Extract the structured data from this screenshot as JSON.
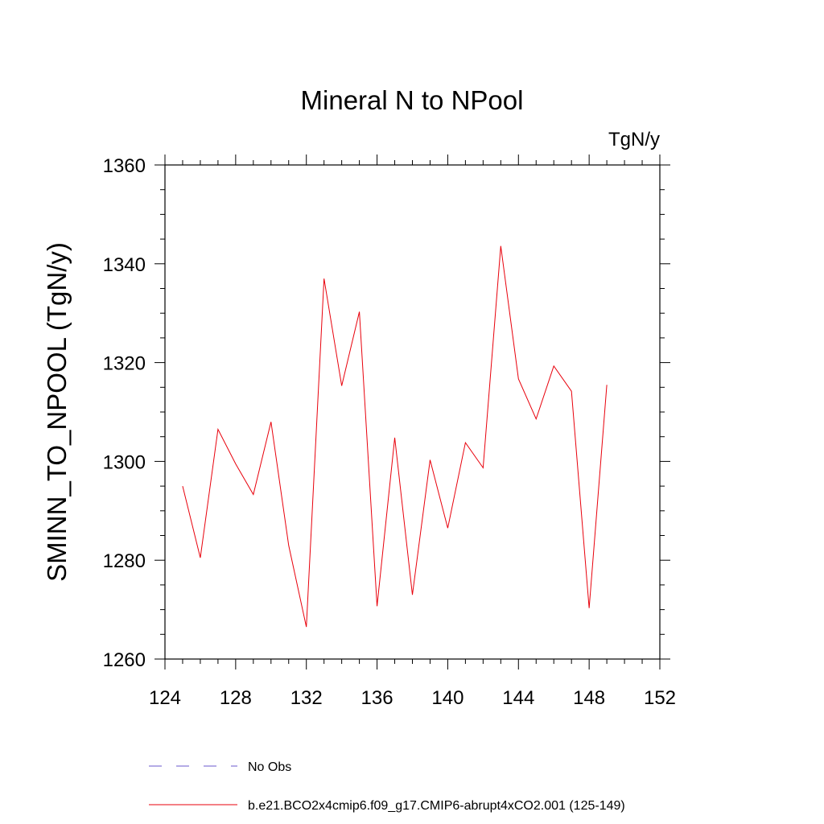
{
  "chart_data": {
    "type": "line",
    "title": "Mineral N to NPool",
    "units": "TgN/y",
    "ylabel": "SMINN_TO_NPOOL  (TgN/y)",
    "xlabel": "",
    "xlim": [
      124,
      152
    ],
    "ylim": [
      1260,
      1360
    ],
    "xticks": [
      124,
      128,
      132,
      136,
      140,
      144,
      148,
      152
    ],
    "yticks": [
      1260,
      1280,
      1300,
      1320,
      1340,
      1360
    ],
    "series": [
      {
        "name": "b.e21.BCO2x4cmip6.f09_g17.CMIP6-abrupt4xCO2.001 (125-149)",
        "color": "#e8000b",
        "style": "solid",
        "x": [
          125,
          126,
          127,
          128,
          129,
          130,
          131,
          132,
          133,
          134,
          135,
          136,
          137,
          138,
          139,
          140,
          141,
          142,
          143,
          144,
          145,
          146,
          147,
          148,
          149
        ],
        "values": [
          1295,
          1280.5,
          1306.5,
          1299.5,
          1293.3,
          1308,
          1283,
          1266.5,
          1337,
          1315.3,
          1330.3,
          1270.7,
          1304.8,
          1273,
          1300.3,
          1286.5,
          1303.8,
          1298.7,
          1343.6,
          1316.7,
          1308.6,
          1319.3,
          1314.2,
          1270.3,
          1315.5
        ]
      }
    ],
    "legend": [
      {
        "label": "No Obs",
        "style": "dashed",
        "color": "#6a5acd"
      },
      {
        "label": "b.e21.BCO2x4cmip6.f09_g17.CMIP6-abrupt4xCO2.001 (125-149)",
        "style": "solid",
        "color": "#e8000b"
      }
    ]
  }
}
